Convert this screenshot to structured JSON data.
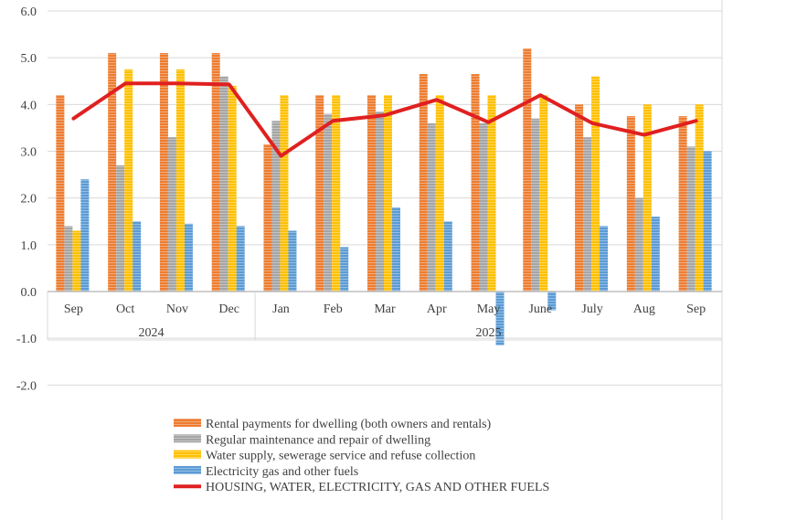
{
  "chart_data": {
    "type": "bar",
    "categories": [
      "Sep",
      "Oct",
      "Nov",
      "Dec",
      "Jan",
      "Feb",
      "Mar",
      "Apr",
      "May",
      "June",
      "July",
      "Aug",
      "Sep"
    ],
    "groups": [
      {
        "label": "2024",
        "span": 4
      },
      {
        "label": "2025",
        "span": 9
      }
    ],
    "ylim": [
      -2.0,
      6.0
    ],
    "yticks": [
      "6.0",
      "5.0",
      "4.0",
      "3.0",
      "2.0",
      "1.0",
      "0.0",
      "-1.0",
      "-2.0"
    ],
    "grid": true,
    "legend_position": "bottom",
    "series": [
      {
        "name": "Rental payments for dwelling (both owners and rentals)",
        "kind": "bar",
        "color": "#ED7D31",
        "values": [
          4.2,
          5.1,
          5.1,
          5.1,
          3.15,
          4.2,
          4.2,
          4.65,
          4.65,
          5.2,
          4.0,
          3.75,
          3.75
        ]
      },
      {
        "name": "Regular maintenance and repair of dwelling",
        "kind": "bar",
        "color": "#A5A5A5",
        "values": [
          1.4,
          2.7,
          3.3,
          4.6,
          3.65,
          3.8,
          3.85,
          3.6,
          3.6,
          3.7,
          3.3,
          2.0,
          3.1
        ]
      },
      {
        "name": "Water supply, sewerage service and refuse collection",
        "kind": "bar",
        "color": "#FFC000",
        "values": [
          1.3,
          4.75,
          4.75,
          4.4,
          4.2,
          4.2,
          4.2,
          4.2,
          4.2,
          4.2,
          4.6,
          4.0,
          4.0
        ]
      },
      {
        "name": "Electricity gas and other fuels",
        "kind": "bar",
        "color": "#5B9BD5",
        "values": [
          2.4,
          1.5,
          1.45,
          1.4,
          1.3,
          0.95,
          1.8,
          1.5,
          -1.15,
          -0.4,
          1.4,
          1.6,
          3.0
        ]
      },
      {
        "name": "HOUSING, WATER, ELECTRICITY, GAS AND OTHER FUELS",
        "kind": "line",
        "color": "#E02020",
        "values": [
          3.7,
          4.45,
          4.45,
          4.43,
          2.9,
          3.65,
          3.77,
          4.1,
          3.62,
          4.2,
          3.6,
          3.35,
          3.65
        ]
      }
    ]
  }
}
